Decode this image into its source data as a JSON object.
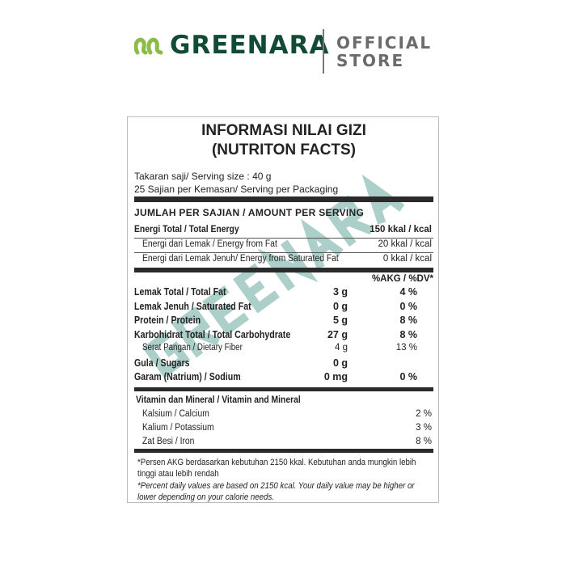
{
  "header": {
    "brand": "GREENARA",
    "store_line1": "OFFICIAL",
    "store_line2": "STORE",
    "brand_color": "#114a35",
    "accent_color": "#8dbb4a"
  },
  "label": {
    "title1": "INFORMASI NILAI GIZI",
    "title2": "(NUTRITON FACTS)",
    "serving_size": "Takaran saji/ Serving size : 40 g",
    "servings": "25 Sajian per Kemasan/ Serving per Packaging",
    "amount_header": "JUMLAH PER SAJIAN / AMOUNT PER SERVING",
    "energy": [
      {
        "label": "Energi Total / Total Energy",
        "value": "150 kkal / kcal",
        "bold": true
      },
      {
        "label": "Energi dari Lemak / Energy from Fat",
        "value": "20 kkal / kcal"
      },
      {
        "label": "Energi dari Lemak Jenuh/ Energy from Saturated Fat",
        "value": "0 kkal / kcal"
      }
    ],
    "dv_header": "%AKG / %DV*",
    "nutrients": [
      {
        "label": "Lemak Total / Total Fat",
        "amount": "3 g",
        "dv": "4 %",
        "bold": true
      },
      {
        "label": "Lemak Jenuh / Saturated Fat",
        "amount": "0 g",
        "dv": "0 %",
        "bold": true
      },
      {
        "label": "Protein / Protein",
        "amount": "5 g",
        "dv": "8 %",
        "bold": true
      },
      {
        "label": "Karbohidrat Total / Total Carbohydrate",
        "amount": "27 g",
        "dv": "8 %",
        "bold": true
      },
      {
        "label": "Serat Pangan / Dietary Fiber",
        "amount": "4 g",
        "dv": "13 %",
        "bold": false
      },
      {
        "label": "Gula / Sugars",
        "amount": "0 g",
        "dv": "",
        "bold": true
      },
      {
        "label": "Garam (Natrium) / Sodium",
        "amount": "0 mg",
        "dv": "0 %",
        "bold": true
      }
    ],
    "vitamin_header": "Vitamin dan Mineral / Vitamin and Mineral",
    "vitamins": [
      {
        "label": "Kalsium / Calcium",
        "dv": "2 %"
      },
      {
        "label": "Kalium / Potassium",
        "dv": "3 %"
      },
      {
        "label": "Zat Besi / Iron",
        "dv": "8 %"
      }
    ],
    "footnote_id": "*Persen AKG berdasarkan kebutuhan 2150 kkal. Kebutuhan anda mungkin lebih tinggi atau lebih rendah",
    "footnote_en": "*Percent daily values are based on 2150 kcal. Your daily value may be higher or lower depending on your calorie needs.",
    "watermark": "GREENARA"
  }
}
